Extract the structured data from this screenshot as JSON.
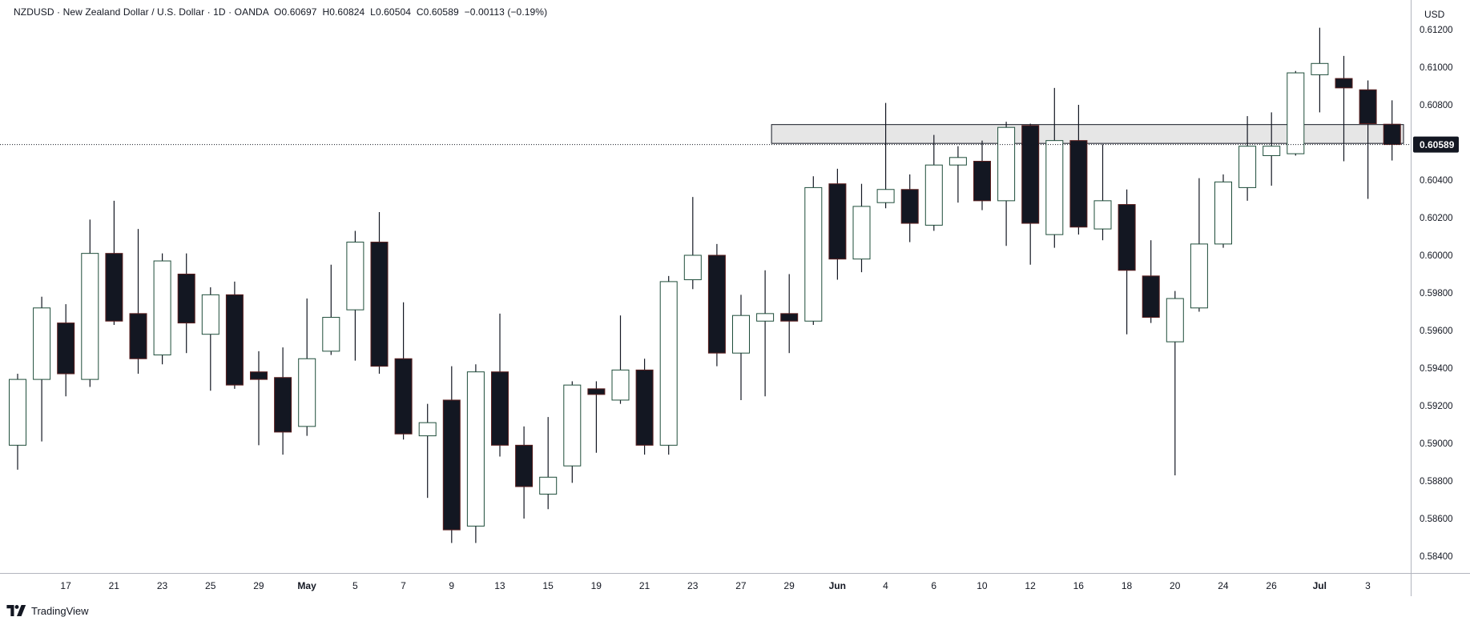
{
  "legend": {
    "symbol": "NZDUSD",
    "description": "New Zealand Dollar / U.S. Dollar",
    "interval": "1D",
    "source": "OANDA",
    "open": "0.60697",
    "high": "0.60824",
    "low": "0.60504",
    "close": "0.60589",
    "change": "−0.00113 (−0.19%)"
  },
  "currency_label": "USD",
  "brand_label": "TradingView",
  "colors": {
    "up_fill": "#ffffff",
    "up_border": "#1e4d3a",
    "down_fill": "#131722",
    "down_border": "#5a1f1f",
    "wick": "#131722",
    "zone_fill": "#e6e6e6",
    "zone_border": "#131722",
    "last_price_bg": "#131722",
    "axis_text": "#131722"
  },
  "chart_data": {
    "type": "candlestick",
    "y_axis": {
      "min": 0.583,
      "max": 0.6125,
      "ticks": [
        "0.61200",
        "0.61000",
        "0.60800",
        "0.60600",
        "0.60400",
        "0.60200",
        "0.60000",
        "0.59800",
        "0.59600",
        "0.59400",
        "0.59200",
        "0.59000",
        "0.58800",
        "0.58600",
        "0.58400"
      ]
    },
    "x_ticks": [
      {
        "i": 1,
        "label": "17"
      },
      {
        "i": 3,
        "label": "21"
      },
      {
        "i": 5,
        "label": "23"
      },
      {
        "i": 7,
        "label": "25"
      },
      {
        "i": 9,
        "label": "29"
      },
      {
        "i": 11,
        "label": "May",
        "bold": true
      },
      {
        "i": 13,
        "label": "5"
      },
      {
        "i": 15,
        "label": "7"
      },
      {
        "i": 17,
        "label": "9"
      },
      {
        "i": 19,
        "label": "13"
      },
      {
        "i": 21,
        "label": "15"
      },
      {
        "i": 23,
        "label": "19"
      },
      {
        "i": 25,
        "label": "21"
      },
      {
        "i": 27,
        "label": "23"
      },
      {
        "i": 29,
        "label": "27"
      },
      {
        "i": 31,
        "label": "29"
      },
      {
        "i": 33,
        "label": "Jun",
        "bold": true
      },
      {
        "i": 35,
        "label": "4"
      },
      {
        "i": 37,
        "label": "6"
      },
      {
        "i": 39,
        "label": "10"
      },
      {
        "i": 41,
        "label": "12"
      },
      {
        "i": 43,
        "label": "16"
      },
      {
        "i": 45,
        "label": "18"
      },
      {
        "i": 47,
        "label": "20"
      },
      {
        "i": 49,
        "label": "24"
      },
      {
        "i": 51,
        "label": "26"
      },
      {
        "i": 53,
        "label": "Jul",
        "bold": true
      },
      {
        "i": 55,
        "label": "3"
      }
    ],
    "last_price": "0.60589",
    "zone": {
      "from_index": 31,
      "top": 0.60695,
      "bottom": 0.60595
    },
    "candles": [
      {
        "o": 0.5899,
        "h": 0.5937,
        "l": 0.5886,
        "c": 0.5934
      },
      {
        "o": 0.5934,
        "h": 0.5978,
        "l": 0.5901,
        "c": 0.5972
      },
      {
        "o": 0.5964,
        "h": 0.5974,
        "l": 0.5925,
        "c": 0.5937
      },
      {
        "o": 0.5934,
        "h": 0.6019,
        "l": 0.593,
        "c": 0.6001
      },
      {
        "o": 0.6001,
        "h": 0.6029,
        "l": 0.5963,
        "c": 0.5965
      },
      {
        "o": 0.5969,
        "h": 0.6014,
        "l": 0.5937,
        "c": 0.5945
      },
      {
        "o": 0.5947,
        "h": 0.6001,
        "l": 0.5942,
        "c": 0.5997
      },
      {
        "o": 0.599,
        "h": 0.6001,
        "l": 0.5948,
        "c": 0.5964
      },
      {
        "o": 0.5958,
        "h": 0.5983,
        "l": 0.5928,
        "c": 0.5979
      },
      {
        "o": 0.5979,
        "h": 0.5986,
        "l": 0.5929,
        "c": 0.5931
      },
      {
        "o": 0.5938,
        "h": 0.5949,
        "l": 0.5899,
        "c": 0.5934
      },
      {
        "o": 0.5935,
        "h": 0.5951,
        "l": 0.5894,
        "c": 0.5906
      },
      {
        "o": 0.5909,
        "h": 0.5977,
        "l": 0.5904,
        "c": 0.5945
      },
      {
        "o": 0.5949,
        "h": 0.5995,
        "l": 0.5947,
        "c": 0.5967
      },
      {
        "o": 0.5971,
        "h": 0.6013,
        "l": 0.5944,
        "c": 0.6007
      },
      {
        "o": 0.6007,
        "h": 0.6023,
        "l": 0.5937,
        "c": 0.5941
      },
      {
        "o": 0.5945,
        "h": 0.5975,
        "l": 0.5902,
        "c": 0.5905
      },
      {
        "o": 0.5904,
        "h": 0.5921,
        "l": 0.5871,
        "c": 0.5911
      },
      {
        "o": 0.5923,
        "h": 0.5941,
        "l": 0.5847,
        "c": 0.5854
      },
      {
        "o": 0.5856,
        "h": 0.5942,
        "l": 0.5847,
        "c": 0.5938
      },
      {
        "o": 0.5938,
        "h": 0.5969,
        "l": 0.5893,
        "c": 0.5899
      },
      {
        "o": 0.5899,
        "h": 0.5909,
        "l": 0.586,
        "c": 0.5877
      },
      {
        "o": 0.5873,
        "h": 0.5914,
        "l": 0.5865,
        "c": 0.5882
      },
      {
        "o": 0.5888,
        "h": 0.5933,
        "l": 0.5879,
        "c": 0.5931
      },
      {
        "o": 0.5929,
        "h": 0.5933,
        "l": 0.5895,
        "c": 0.5926
      },
      {
        "o": 0.5923,
        "h": 0.5968,
        "l": 0.5921,
        "c": 0.5939
      },
      {
        "o": 0.5939,
        "h": 0.5945,
        "l": 0.5894,
        "c": 0.5899
      },
      {
        "o": 0.5899,
        "h": 0.5989,
        "l": 0.5894,
        "c": 0.5986
      },
      {
        "o": 0.5987,
        "h": 0.6031,
        "l": 0.5982,
        "c": 0.6
      },
      {
        "o": 0.6,
        "h": 0.6006,
        "l": 0.5941,
        "c": 0.5948
      },
      {
        "o": 0.5948,
        "h": 0.5979,
        "l": 0.5923,
        "c": 0.5968
      },
      {
        "o": 0.5965,
        "h": 0.5992,
        "l": 0.5925,
        "c": 0.5969
      },
      {
        "o": 0.5969,
        "h": 0.599,
        "l": 0.5948,
        "c": 0.5965
      },
      {
        "o": 0.5965,
        "h": 0.6042,
        "l": 0.5963,
        "c": 0.6036
      },
      {
        "o": 0.6038,
        "h": 0.6046,
        "l": 0.5987,
        "c": 0.5998
      },
      {
        "o": 0.5998,
        "h": 0.6038,
        "l": 0.5991,
        "c": 0.6026
      },
      {
        "o": 0.6028,
        "h": 0.6081,
        "l": 0.6025,
        "c": 0.6035
      },
      {
        "o": 0.6035,
        "h": 0.6043,
        "l": 0.6007,
        "c": 0.6017
      },
      {
        "o": 0.6016,
        "h": 0.6064,
        "l": 0.6013,
        "c": 0.6048
      },
      {
        "o": 0.6048,
        "h": 0.6058,
        "l": 0.6028,
        "c": 0.6052
      },
      {
        "o": 0.605,
        "h": 0.6061,
        "l": 0.6024,
        "c": 0.6029
      },
      {
        "o": 0.6029,
        "h": 0.6071,
        "l": 0.6005,
        "c": 0.6068
      },
      {
        "o": 0.6069,
        "h": 0.607,
        "l": 0.5995,
        "c": 0.6017
      },
      {
        "o": 0.6011,
        "h": 0.6089,
        "l": 0.6004,
        "c": 0.6061
      },
      {
        "o": 0.6061,
        "h": 0.608,
        "l": 0.6011,
        "c": 0.6015
      },
      {
        "o": 0.6014,
        "h": 0.6059,
        "l": 0.6008,
        "c": 0.6029
      },
      {
        "o": 0.6027,
        "h": 0.6035,
        "l": 0.5958,
        "c": 0.5992
      },
      {
        "o": 0.5989,
        "h": 0.6008,
        "l": 0.5964,
        "c": 0.5967
      },
      {
        "o": 0.5954,
        "h": 0.5981,
        "l": 0.5883,
        "c": 0.5977
      },
      {
        "o": 0.5972,
        "h": 0.6041,
        "l": 0.597,
        "c": 0.6006
      },
      {
        "o": 0.6006,
        "h": 0.6043,
        "l": 0.6004,
        "c": 0.6039
      },
      {
        "o": 0.6036,
        "h": 0.6074,
        "l": 0.6029,
        "c": 0.6058
      },
      {
        "o": 0.6053,
        "h": 0.6076,
        "l": 0.6037,
        "c": 0.6058
      },
      {
        "o": 0.6054,
        "h": 0.6098,
        "l": 0.6053,
        "c": 0.6097
      },
      {
        "o": 0.6096,
        "h": 0.6121,
        "l": 0.6076,
        "c": 0.6102
      },
      {
        "o": 0.6094,
        "h": 0.6106,
        "l": 0.605,
        "c": 0.6089
      },
      {
        "o": 0.6088,
        "h": 0.6093,
        "l": 0.603,
        "c": 0.607
      },
      {
        "o": 0.60697,
        "h": 0.60824,
        "l": 0.60504,
        "c": 0.60589
      }
    ]
  }
}
